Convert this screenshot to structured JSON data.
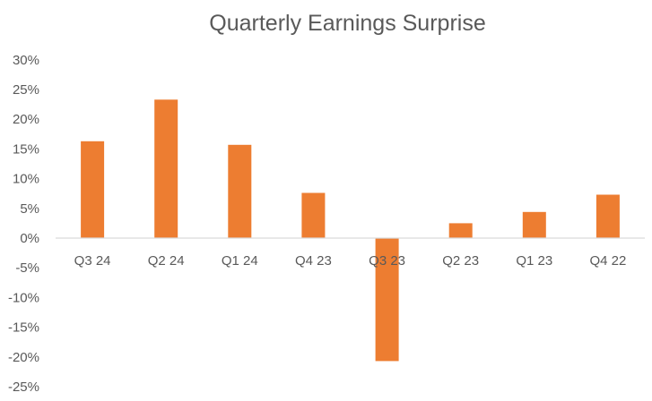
{
  "chart_data": {
    "type": "bar",
    "title": "Quarterly Earnings Surprise",
    "xlabel": "",
    "ylabel": "",
    "categories": [
      "Q3 24",
      "Q2 24",
      "Q1 24",
      "Q4 23",
      "Q3 23",
      "Q2 23",
      "Q1 23",
      "Q4 22"
    ],
    "values": [
      16.3,
      23.3,
      15.7,
      7.6,
      -20.7,
      2.5,
      4.4,
      7.3
    ],
    "ylim": [
      -25,
      30
    ],
    "yticks": [
      30,
      25,
      20,
      15,
      10,
      5,
      0,
      -5,
      -10,
      -15,
      -20,
      -25
    ],
    "ytick_labels": [
      "30%",
      "25%",
      "20%",
      "15%",
      "10%",
      "5%",
      "0%",
      "-5%",
      "-10%",
      "-15%",
      "-20%",
      "-25%"
    ],
    "grid": false,
    "legend": "none",
    "bar_color": "#ED7D31",
    "axis_color": "#D9D9D9",
    "text_color": "#595959"
  }
}
